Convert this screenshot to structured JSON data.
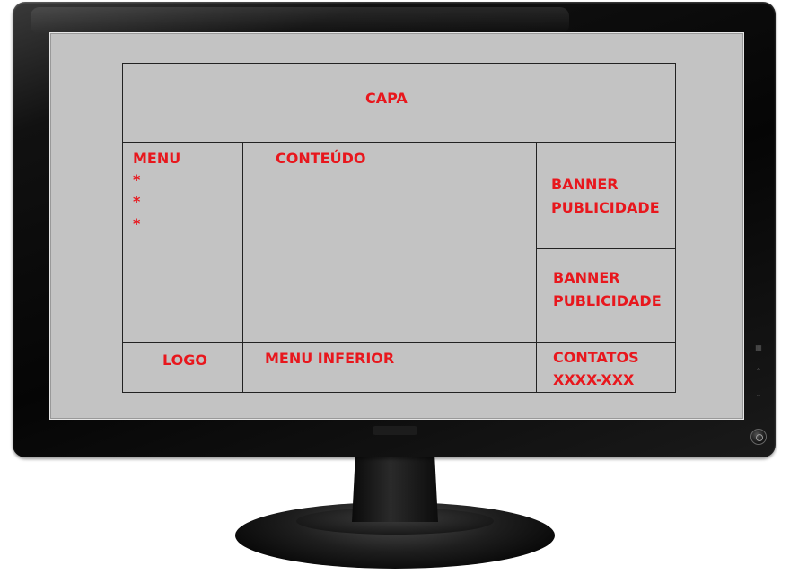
{
  "wireframe": {
    "header": {
      "label": "CAPA"
    },
    "menu": {
      "title": "MENU",
      "items": [
        "*",
        "*",
        "*"
      ]
    },
    "content": {
      "label": "CONTEÚDO"
    },
    "banners": [
      {
        "line1": "BANNER",
        "line2": "PUBLICIDADE"
      },
      {
        "line1": "BANNER",
        "line2": "PUBLICIDADE"
      }
    ],
    "footer": {
      "logo": "LOGO",
      "menu_inferior": "MENU INFERIOR",
      "contatos_title": "CONTATOS",
      "contatos_value": "XXXX-XXX"
    }
  },
  "colors": {
    "label": "#e8171d",
    "screen": "#c3c3c3",
    "lines": "#222222",
    "bezel": "#0a0a0a"
  },
  "icons": [
    "menu-icon",
    "up-chevron-icon",
    "down-chevron-icon",
    "power-icon"
  ]
}
